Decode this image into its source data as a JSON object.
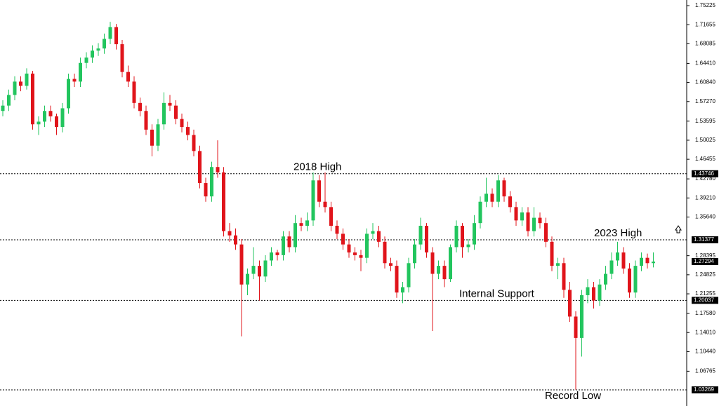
{
  "chart_data": {
    "type": "candlestick",
    "ylim": [
      1.0025,
      1.7628
    ],
    "yticks": [
      1.75225,
      1.71655,
      1.68085,
      {
        "value": 1.6441,
        "label": "1.64410"
      },
      {
        "value": 1.6084,
        "label": "1.60840"
      },
      {
        "value": 1.5727,
        "label": "1.57270"
      },
      1.53595,
      1.50025,
      1.46455,
      {
        "value": 1.4278,
        "label": "1.42780"
      },
      {
        "value": 1.3921,
        "label": "1.39210"
      },
      {
        "value": 1.3564,
        "label": "1.35640"
      },
      1.28395,
      1.24825,
      1.21255,
      {
        "value": 1.1758,
        "label": "1.17580"
      },
      {
        "value": 1.1401,
        "label": "1.14010"
      },
      {
        "value": 1.1044,
        "label": "1.10440"
      },
      1.06765
    ],
    "up_color": "#22c55e",
    "down_color": "#e0141b",
    "levels": [
      {
        "value": 1.43746,
        "label": "2018 High"
      },
      {
        "value": 1.31377,
        "label": "2023 High"
      },
      {
        "value": 1.20037,
        "label": "Internal Support"
      },
      {
        "value": 1.03269,
        "label": "Record Low"
      }
    ],
    "last_price": 1.27294,
    "ohlc": [
      [
        1.555,
        1.575,
        1.545,
        1.565
      ],
      [
        1.565,
        1.595,
        1.555,
        1.585
      ],
      [
        1.585,
        1.62,
        1.575,
        1.61
      ],
      [
        1.61,
        1.62,
        1.592,
        1.602
      ],
      [
        1.602,
        1.635,
        1.595,
        1.625
      ],
      [
        1.625,
        1.63,
        1.52,
        1.53
      ],
      [
        1.53,
        1.545,
        1.51,
        1.535
      ],
      [
        1.535,
        1.565,
        1.525,
        1.555
      ],
      [
        1.555,
        1.565,
        1.535,
        1.545
      ],
      [
        1.545,
        1.55,
        1.51,
        1.525
      ],
      [
        1.525,
        1.57,
        1.515,
        1.56
      ],
      [
        1.56,
        1.625,
        1.55,
        1.615
      ],
      [
        1.615,
        1.625,
        1.6,
        1.61
      ],
      [
        1.61,
        1.655,
        1.6,
        1.645
      ],
      [
        1.645,
        1.665,
        1.635,
        1.655
      ],
      [
        1.655,
        1.678,
        1.645,
        1.668
      ],
      [
        1.668,
        1.682,
        1.658,
        1.672
      ],
      [
        1.672,
        1.7,
        1.662,
        1.69
      ],
      [
        1.69,
        1.722,
        1.68,
        1.712
      ],
      [
        1.712,
        1.718,
        1.67,
        1.68
      ],
      [
        1.68,
        1.688,
        1.618,
        1.628
      ],
      [
        1.628,
        1.64,
        1.6,
        1.61
      ],
      [
        1.61,
        1.62,
        1.56,
        1.57
      ],
      [
        1.57,
        1.58,
        1.545,
        1.555
      ],
      [
        1.555,
        1.565,
        1.51,
        1.52
      ],
      [
        1.52,
        1.53,
        1.47,
        1.49
      ],
      [
        1.49,
        1.54,
        1.48,
        1.53
      ],
      [
        1.53,
        1.59,
        1.52,
        1.57
      ],
      [
        1.57,
        1.585,
        1.555,
        1.565
      ],
      [
        1.565,
        1.575,
        1.53,
        1.54
      ],
      [
        1.54,
        1.55,
        1.515,
        1.525
      ],
      [
        1.525,
        1.535,
        1.5,
        1.51
      ],
      [
        1.51,
        1.52,
        1.47,
        1.48
      ],
      [
        1.48,
        1.49,
        1.41,
        1.42
      ],
      [
        1.42,
        1.43,
        1.385,
        1.395
      ],
      [
        1.395,
        1.46,
        1.385,
        1.45
      ],
      [
        1.45,
        1.5,
        1.43,
        1.44
      ],
      [
        1.44,
        1.45,
        1.32,
        1.33
      ],
      [
        1.33,
        1.345,
        1.31,
        1.322
      ],
      [
        1.322,
        1.335,
        1.295,
        1.305
      ],
      [
        1.305,
        1.315,
        1.133,
        1.23
      ],
      [
        1.23,
        1.26,
        1.21,
        1.25
      ],
      [
        1.25,
        1.3,
        1.24,
        1.265
      ],
      [
        1.265,
        1.275,
        1.2,
        1.245
      ],
      [
        1.245,
        1.285,
        1.235,
        1.275
      ],
      [
        1.275,
        1.3,
        1.265,
        1.29
      ],
      [
        1.29,
        1.295,
        1.275,
        1.285
      ],
      [
        1.285,
        1.33,
        1.275,
        1.32
      ],
      [
        1.32,
        1.33,
        1.29,
        1.3
      ],
      [
        1.3,
        1.36,
        1.29,
        1.345
      ],
      [
        1.345,
        1.355,
        1.33,
        1.34
      ],
      [
        1.34,
        1.365,
        1.33,
        1.35
      ],
      [
        1.35,
        1.44,
        1.34,
        1.425
      ],
      [
        1.425,
        1.435,
        1.375,
        1.385
      ],
      [
        1.385,
        1.44,
        1.365,
        1.375
      ],
      [
        1.375,
        1.385,
        1.33,
        1.34
      ],
      [
        1.34,
        1.35,
        1.315,
        1.325
      ],
      [
        1.325,
        1.335,
        1.295,
        1.305
      ],
      [
        1.305,
        1.315,
        1.28,
        1.29
      ],
      [
        1.29,
        1.3,
        1.275,
        1.285
      ],
      [
        1.285,
        1.295,
        1.255,
        1.28
      ],
      [
        1.28,
        1.335,
        1.27,
        1.325
      ],
      [
        1.325,
        1.345,
        1.315,
        1.33
      ],
      [
        1.33,
        1.34,
        1.3,
        1.31
      ],
      [
        1.31,
        1.32,
        1.26,
        1.27
      ],
      [
        1.27,
        1.28,
        1.255,
        1.265
      ],
      [
        1.265,
        1.275,
        1.205,
        1.215
      ],
      [
        1.215,
        1.235,
        1.195,
        1.225
      ],
      [
        1.225,
        1.28,
        1.215,
        1.27
      ],
      [
        1.27,
        1.315,
        1.26,
        1.305
      ],
      [
        1.305,
        1.355,
        1.295,
        1.34
      ],
      [
        1.34,
        1.345,
        1.28,
        1.29
      ],
      [
        1.29,
        1.3,
        1.143,
        1.25
      ],
      [
        1.25,
        1.275,
        1.24,
        1.265
      ],
      [
        1.265,
        1.275,
        1.225,
        1.24
      ],
      [
        1.24,
        1.305,
        1.235,
        1.3
      ],
      [
        1.3,
        1.35,
        1.29,
        1.34
      ],
      [
        1.34,
        1.345,
        1.28,
        1.3
      ],
      [
        1.3,
        1.315,
        1.29,
        1.305
      ],
      [
        1.305,
        1.36,
        1.295,
        1.345
      ],
      [
        1.345,
        1.395,
        1.335,
        1.385
      ],
      [
        1.385,
        1.43,
        1.375,
        1.4
      ],
      [
        1.4,
        1.41,
        1.375,
        1.385
      ],
      [
        1.385,
        1.435,
        1.375,
        1.425
      ],
      [
        1.425,
        1.43,
        1.385,
        1.395
      ],
      [
        1.395,
        1.405,
        1.365,
        1.375
      ],
      [
        1.375,
        1.385,
        1.34,
        1.35
      ],
      [
        1.35,
        1.375,
        1.34,
        1.365
      ],
      [
        1.365,
        1.375,
        1.32,
        1.33
      ],
      [
        1.33,
        1.375,
        1.32,
        1.355
      ],
      [
        1.355,
        1.365,
        1.335,
        1.345
      ],
      [
        1.345,
        1.355,
        1.3,
        1.31
      ],
      [
        1.31,
        1.32,
        1.255,
        1.265
      ],
      [
        1.265,
        1.28,
        1.24,
        1.27
      ],
      [
        1.27,
        1.28,
        1.205,
        1.22
      ],
      [
        1.22,
        1.235,
        1.16,
        1.17
      ],
      [
        1.17,
        1.18,
        1.033,
        1.13
      ],
      [
        1.13,
        1.22,
        1.095,
        1.21
      ],
      [
        1.21,
        1.24,
        1.195,
        1.225
      ],
      [
        1.225,
        1.235,
        1.185,
        1.2
      ],
      [
        1.2,
        1.24,
        1.19,
        1.23
      ],
      [
        1.23,
        1.265,
        1.22,
        1.25
      ],
      [
        1.25,
        1.29,
        1.24,
        1.275
      ],
      [
        1.275,
        1.31,
        1.265,
        1.29
      ],
      [
        1.29,
        1.3,
        1.25,
        1.26
      ],
      [
        1.26,
        1.27,
        1.205,
        1.215
      ],
      [
        1.215,
        1.275,
        1.205,
        1.265
      ],
      [
        1.265,
        1.29,
        1.255,
        1.28
      ],
      [
        1.28,
        1.288,
        1.26,
        1.27
      ],
      [
        1.27,
        1.29,
        1.262,
        1.27294
      ]
    ]
  }
}
